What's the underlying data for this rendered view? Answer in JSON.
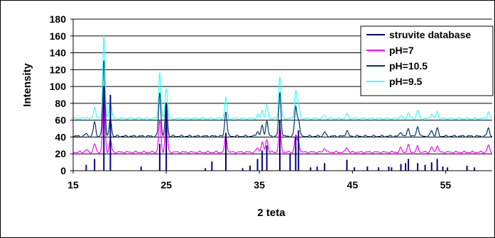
{
  "chart_data": {
    "type": "line",
    "title": "",
    "xlabel": "2 teta",
    "ylabel": "Intensity",
    "xlim": [
      15,
      60
    ],
    "ylim": [
      0,
      180
    ],
    "xticks": [
      15,
      25,
      35,
      45,
      55
    ],
    "yticks": [
      0,
      20,
      40,
      60,
      80,
      100,
      120,
      140,
      160,
      180
    ],
    "grid": "horizontal",
    "legend_position": "top-right",
    "series": [
      {
        "name": "struvite database",
        "kind": "sticks",
        "color": "#000080",
        "x": [
          16.4,
          17.3,
          18.3,
          19.0,
          22.3,
          24.3,
          25.0,
          29.2,
          29.9,
          31.4,
          33.2,
          34.0,
          34.8,
          35.3,
          35.8,
          37.2,
          38.3,
          38.9,
          39.2,
          40.5,
          41.2,
          42.0,
          44.4,
          45.2,
          46.6,
          47.8,
          48.9,
          49.2,
          50.2,
          50.7,
          51.0,
          52.0,
          52.8,
          53.5,
          54.1,
          54.7,
          55.2,
          57.3,
          58.1
        ],
        "values": [
          7,
          14,
          100,
          90,
          5,
          32,
          80,
          3,
          11,
          45,
          3,
          6,
          14,
          24,
          30,
          60,
          20,
          40,
          48,
          4,
          5,
          9,
          13,
          4,
          5,
          4,
          5,
          4,
          8,
          9,
          14,
          9,
          7,
          10,
          14,
          5,
          4,
          6,
          4
        ]
      },
      {
        "name": "pH=7",
        "kind": "pattern",
        "color": "#ff00ff",
        "baseline": 22,
        "peaks": [
          [
            16.4,
            3
          ],
          [
            17.3,
            10
          ],
          [
            18.3,
            70
          ],
          [
            19.0,
            15
          ],
          [
            24.3,
            38
          ],
          [
            25.0,
            40
          ],
          [
            31.4,
            20
          ],
          [
            34.8,
            5
          ],
          [
            35.3,
            12
          ],
          [
            35.8,
            15
          ],
          [
            37.2,
            30
          ],
          [
            38.9,
            20
          ],
          [
            39.2,
            12
          ],
          [
            42.0,
            5
          ],
          [
            44.4,
            6
          ],
          [
            50.2,
            5
          ],
          [
            51.0,
            8
          ],
          [
            52.0,
            7
          ],
          [
            53.5,
            6
          ],
          [
            54.1,
            8
          ],
          [
            59.6,
            8
          ]
        ]
      },
      {
        "name": "pH=10.5",
        "kind": "pattern",
        "color": "#003366",
        "baseline": 41,
        "peaks": [
          [
            16.4,
            3
          ],
          [
            17.3,
            17
          ],
          [
            18.3,
            90
          ],
          [
            19.0,
            20
          ],
          [
            24.3,
            52
          ],
          [
            25.0,
            40
          ],
          [
            31.4,
            30
          ],
          [
            34.8,
            6
          ],
          [
            35.3,
            12
          ],
          [
            35.8,
            18
          ],
          [
            37.2,
            52
          ],
          [
            38.9,
            35
          ],
          [
            39.2,
            20
          ],
          [
            42.0,
            5
          ],
          [
            44.4,
            7
          ],
          [
            50.2,
            5
          ],
          [
            51.0,
            9
          ],
          [
            52.0,
            12
          ],
          [
            53.5,
            7
          ],
          [
            54.1,
            9
          ],
          [
            59.6,
            10
          ]
        ]
      },
      {
        "name": "pH=9.5",
        "kind": "pattern",
        "color": "#33ffff",
        "baseline": 62,
        "peaks": [
          [
            16.4,
            2
          ],
          [
            17.3,
            14
          ],
          [
            18.3,
            98
          ],
          [
            19.0,
            21
          ],
          [
            24.3,
            55
          ],
          [
            25.0,
            37
          ],
          [
            31.4,
            25
          ],
          [
            34.8,
            4
          ],
          [
            35.3,
            10
          ],
          [
            35.8,
            15
          ],
          [
            37.2,
            50
          ],
          [
            38.9,
            33
          ],
          [
            39.2,
            18
          ],
          [
            42.0,
            4
          ],
          [
            44.4,
            5
          ],
          [
            50.2,
            4
          ],
          [
            51.0,
            7
          ],
          [
            52.0,
            10
          ],
          [
            53.5,
            6
          ],
          [
            54.1,
            8
          ],
          [
            59.6,
            8
          ]
        ]
      }
    ]
  }
}
